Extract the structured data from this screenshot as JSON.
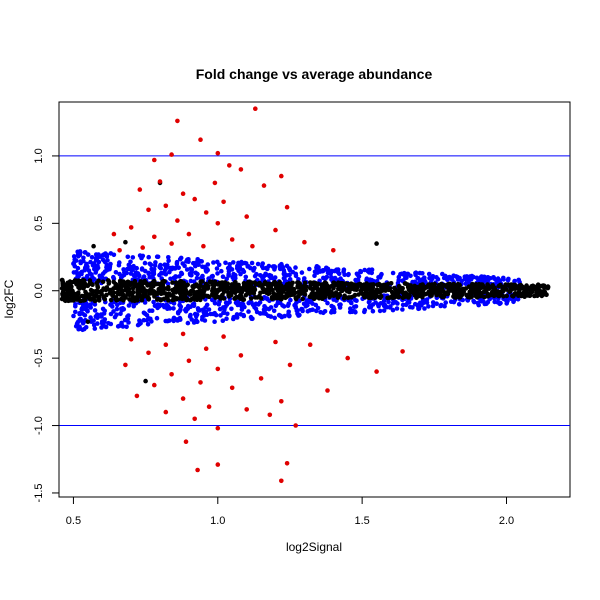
{
  "chart_data": {
    "type": "scatter",
    "title": "Fold change vs average abundance",
    "xlabel": "log2Signal",
    "ylabel": "log2FC",
    "xlim": [
      0.45,
      2.22
    ],
    "ylim": [
      -1.53,
      1.4
    ],
    "x_ticks": [
      "0.5",
      "1.0",
      "1.5",
      "2.0"
    ],
    "y_ticks": [
      "-1.5",
      "-1.0",
      "-0.5",
      "0.0",
      "0.5",
      "1.0"
    ],
    "reference_lines": [
      1.0,
      -1.0
    ],
    "grid": false,
    "legend": "none",
    "colors": {
      "reference_line": "#0000ff",
      "significant": "#e00000",
      "moderate": "#0000ff",
      "background": "#000000"
    },
    "series": [
      {
        "color": "#e00000",
        "points": [
          [
            0.86,
            1.26
          ],
          [
            1.13,
            1.35
          ],
          [
            1.0,
            1.02
          ],
          [
            0.84,
            1.01
          ],
          [
            0.94,
            1.12
          ],
          [
            0.78,
            0.97
          ],
          [
            1.04,
            0.93
          ],
          [
            1.08,
            0.9
          ],
          [
            1.22,
            0.85
          ],
          [
            0.8,
            0.81
          ],
          [
            0.99,
            0.8
          ],
          [
            1.16,
            0.78
          ],
          [
            0.73,
            0.75
          ],
          [
            0.88,
            0.72
          ],
          [
            0.92,
            0.68
          ],
          [
            1.02,
            0.66
          ],
          [
            0.82,
            0.63
          ],
          [
            1.24,
            0.62
          ],
          [
            0.76,
            0.6
          ],
          [
            0.96,
            0.58
          ],
          [
            1.1,
            0.55
          ],
          [
            0.86,
            0.52
          ],
          [
            1.0,
            0.5
          ],
          [
            0.7,
            0.47
          ],
          [
            1.2,
            0.45
          ],
          [
            0.9,
            0.42
          ],
          [
            0.78,
            0.4
          ],
          [
            1.05,
            0.38
          ],
          [
            1.3,
            0.36
          ],
          [
            0.84,
            0.35
          ],
          [
            0.95,
            0.33
          ],
          [
            1.12,
            0.33
          ],
          [
            0.74,
            0.32
          ],
          [
            1.4,
            0.3
          ],
          [
            0.66,
            0.3
          ],
          [
            0.88,
            -0.32
          ],
          [
            1.02,
            -0.34
          ],
          [
            0.7,
            -0.36
          ],
          [
            1.2,
            -0.38
          ],
          [
            0.82,
            -0.4
          ],
          [
            1.32,
            -0.4
          ],
          [
            0.96,
            -0.43
          ],
          [
            0.76,
            -0.46
          ],
          [
            1.08,
            -0.48
          ],
          [
            1.45,
            -0.5
          ],
          [
            0.9,
            -0.52
          ],
          [
            1.25,
            -0.55
          ],
          [
            0.68,
            -0.55
          ],
          [
            1.0,
            -0.58
          ],
          [
            1.55,
            -0.6
          ],
          [
            0.84,
            -0.62
          ],
          [
            1.15,
            -0.65
          ],
          [
            0.94,
            -0.68
          ],
          [
            0.78,
            -0.7
          ],
          [
            1.05,
            -0.72
          ],
          [
            1.38,
            -0.74
          ],
          [
            0.72,
            -0.78
          ],
          [
            0.88,
            -0.8
          ],
          [
            1.22,
            -0.82
          ],
          [
            0.97,
            -0.86
          ],
          [
            1.1,
            -0.88
          ],
          [
            0.82,
            -0.9
          ],
          [
            1.18,
            -0.92
          ],
          [
            0.92,
            -0.95
          ],
          [
            1.27,
            -1.0
          ],
          [
            1.0,
            -1.02
          ],
          [
            0.89,
            -1.12
          ],
          [
            1.24,
            -1.28
          ],
          [
            0.93,
            -1.33
          ],
          [
            1.0,
            -1.29
          ],
          [
            1.22,
            -1.41
          ],
          [
            1.64,
            -0.45
          ],
          [
            0.64,
            0.42
          ]
        ]
      },
      {
        "color": "#0000ff",
        "count": 1200,
        "x_range": [
          0.5,
          2.05
        ],
        "abs_y_range": [
          0.06,
          0.3
        ]
      },
      {
        "color": "#000000",
        "count": 1300,
        "x_range": [
          0.46,
          2.15
        ],
        "abs_y_range": [
          0.0,
          0.08
        ],
        "extra_points": [
          [
            0.8,
            0.8
          ],
          [
            0.75,
            -0.67
          ],
          [
            0.68,
            0.36
          ],
          [
            1.55,
            0.35
          ],
          [
            0.57,
            0.33
          ],
          [
            0.55,
            -0.23
          ]
        ]
      }
    ]
  }
}
